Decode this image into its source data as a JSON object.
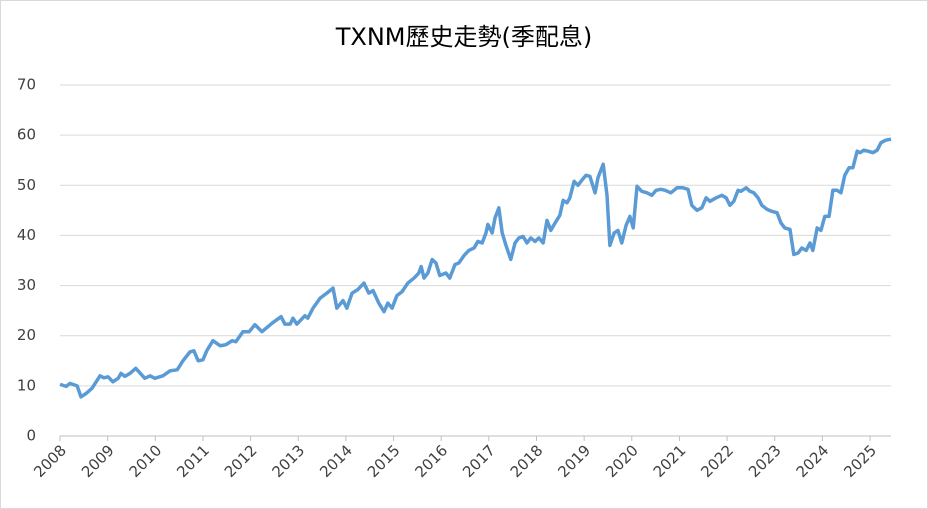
{
  "chart_data": {
    "type": "line",
    "title": "TXNM歷史走勢(季配息)",
    "x": [
      2008,
      2008.13,
      2008.21,
      2008.36,
      2008.44,
      2008.55,
      2008.67,
      2008.84,
      2008.92,
      2009.01,
      2009.11,
      2009.22,
      2009.28,
      2009.36,
      2009.47,
      2009.59,
      2009.78,
      2009.89,
      2009.99,
      2010.16,
      2010.31,
      2010.46,
      2010.58,
      2010.73,
      2010.81,
      2010.9,
      2011,
      2011.08,
      2011.21,
      2011.36,
      2011.48,
      2011.61,
      2011.69,
      2011.84,
      2011.97,
      2012.09,
      2012.24,
      2012.45,
      2012.64,
      2012.72,
      2012.83,
      2012.89,
      2012.97,
      2013.14,
      2013.2,
      2013.31,
      2013.46,
      2013.6,
      2013.73,
      2013.81,
      2013.94,
      2014.02,
      2014.13,
      2014.25,
      2014.38,
      2014.48,
      2014.57,
      2014.69,
      2014.8,
      2014.88,
      2014.97,
      2015.07,
      2015.18,
      2015.3,
      2015.43,
      2015.53,
      2015.58,
      2015.64,
      2015.72,
      2015.81,
      2015.89,
      2015.97,
      2016.1,
      2016.18,
      2016.29,
      2016.37,
      2016.48,
      2016.58,
      2016.69,
      2016.77,
      2016.86,
      2016.94,
      2016.98,
      2017.07,
      2017.13,
      2017.21,
      2017.28,
      2017.36,
      2017.46,
      2017.55,
      2017.63,
      2017.72,
      2017.8,
      2017.88,
      2017.97,
      2018.05,
      2018.14,
      2018.22,
      2018.3,
      2018.41,
      2018.49,
      2018.56,
      2018.64,
      2018.7,
      2018.79,
      2018.87,
      2018.95,
      2019.04,
      2019.12,
      2019.23,
      2019.29,
      2019.4,
      2019.48,
      2019.54,
      2019.63,
      2019.71,
      2019.79,
      2019.88,
      2019.96,
      2020.03,
      2020.11,
      2020.21,
      2020.32,
      2020.42,
      2020.51,
      2020.61,
      2020.7,
      2020.82,
      2020.95,
      2021.07,
      2021.18,
      2021.26,
      2021.37,
      2021.47,
      2021.56,
      2021.64,
      2021.77,
      2021.89,
      2021.98,
      2022.06,
      2022.14,
      2022.23,
      2022.29,
      2022.4,
      2022.48,
      2022.56,
      2022.65,
      2022.73,
      2022.84,
      2022.94,
      2023.05,
      2023.13,
      2023.21,
      2023.32,
      2023.4,
      2023.49,
      2023.57,
      2023.66,
      2023.74,
      2023.8,
      2023.89,
      2023.97,
      2024.05,
      2024.14,
      2024.22,
      2024.31,
      2024.39,
      2024.47,
      2024.56,
      2024.64,
      2024.73,
      2024.79,
      2024.87,
      2024.96,
      2025.06,
      2025.15,
      2025.23,
      2025.33,
      2025.44
    ],
    "series": [
      {
        "color": "#5b9bd5",
        "values": [
          10.3,
          9.9,
          10.5,
          10,
          7.8,
          8.5,
          9.5,
          12,
          11.6,
          11.8,
          10.8,
          11.5,
          12.5,
          11.9,
          12.5,
          13.5,
          11.5,
          12,
          11.5,
          12,
          13,
          13.2,
          15,
          16.8,
          17,
          15,
          15.2,
          17,
          19,
          18,
          18.2,
          19,
          18.8,
          20.8,
          20.8,
          22.2,
          20.8,
          22.5,
          23.8,
          22.3,
          22.3,
          23.5,
          22.3,
          24,
          23.5,
          25.5,
          27.5,
          28.5,
          29.5,
          25.5,
          27,
          25.5,
          28.5,
          29.2,
          30.5,
          28.5,
          29,
          26.5,
          24.8,
          26.5,
          25.5,
          28,
          28.8,
          30.5,
          31.5,
          32.5,
          33.8,
          31.5,
          32.5,
          35.2,
          34.5,
          32,
          32.5,
          31.5,
          34.2,
          34.5,
          36,
          37,
          37.5,
          38.8,
          38.5,
          40.5,
          42.2,
          40.5,
          43.5,
          45.5,
          40.5,
          38,
          35.2,
          38.5,
          39.5,
          39.8,
          38.5,
          39.5,
          38.8,
          39.5,
          38.5,
          43,
          41,
          42.8,
          44,
          47,
          46.5,
          47.5,
          50.8,
          50,
          51,
          52,
          51.8,
          48.5,
          51.5,
          54.2,
          48,
          38,
          40.5,
          41,
          38.5,
          42,
          43.8,
          41.5,
          49.8,
          48.8,
          48.5,
          48,
          49,
          49.2,
          49,
          48.5,
          49.5,
          49.5,
          49.2,
          46,
          45,
          45.5,
          47.5,
          46.8,
          47.5,
          48,
          47.5,
          46,
          46.8,
          49,
          48.8,
          49.5,
          48.8,
          48.5,
          47.5,
          46,
          45.2,
          44.8,
          44.5,
          42.5,
          41.5,
          41.2,
          36.2,
          36.5,
          37.5,
          37,
          38.5,
          37,
          41.5,
          41,
          43.8,
          43.8,
          49,
          49,
          48.5,
          52,
          53.5,
          53.5,
          56.8,
          56.5,
          57,
          56.8,
          56.5,
          57,
          58.5,
          59,
          59.2
        ]
      }
    ],
    "xlim": [
      2008,
      2025.44
    ],
    "xticks": [
      2008,
      2009,
      2010,
      2011,
      2012,
      2013,
      2014,
      2015,
      2016,
      2017,
      2018,
      2019,
      2020,
      2021,
      2022,
      2023,
      2024,
      2025
    ],
    "ylim": [
      0,
      70
    ],
    "yticks": [
      0,
      10,
      20,
      30,
      40,
      50,
      60,
      70
    ],
    "grid": true
  }
}
